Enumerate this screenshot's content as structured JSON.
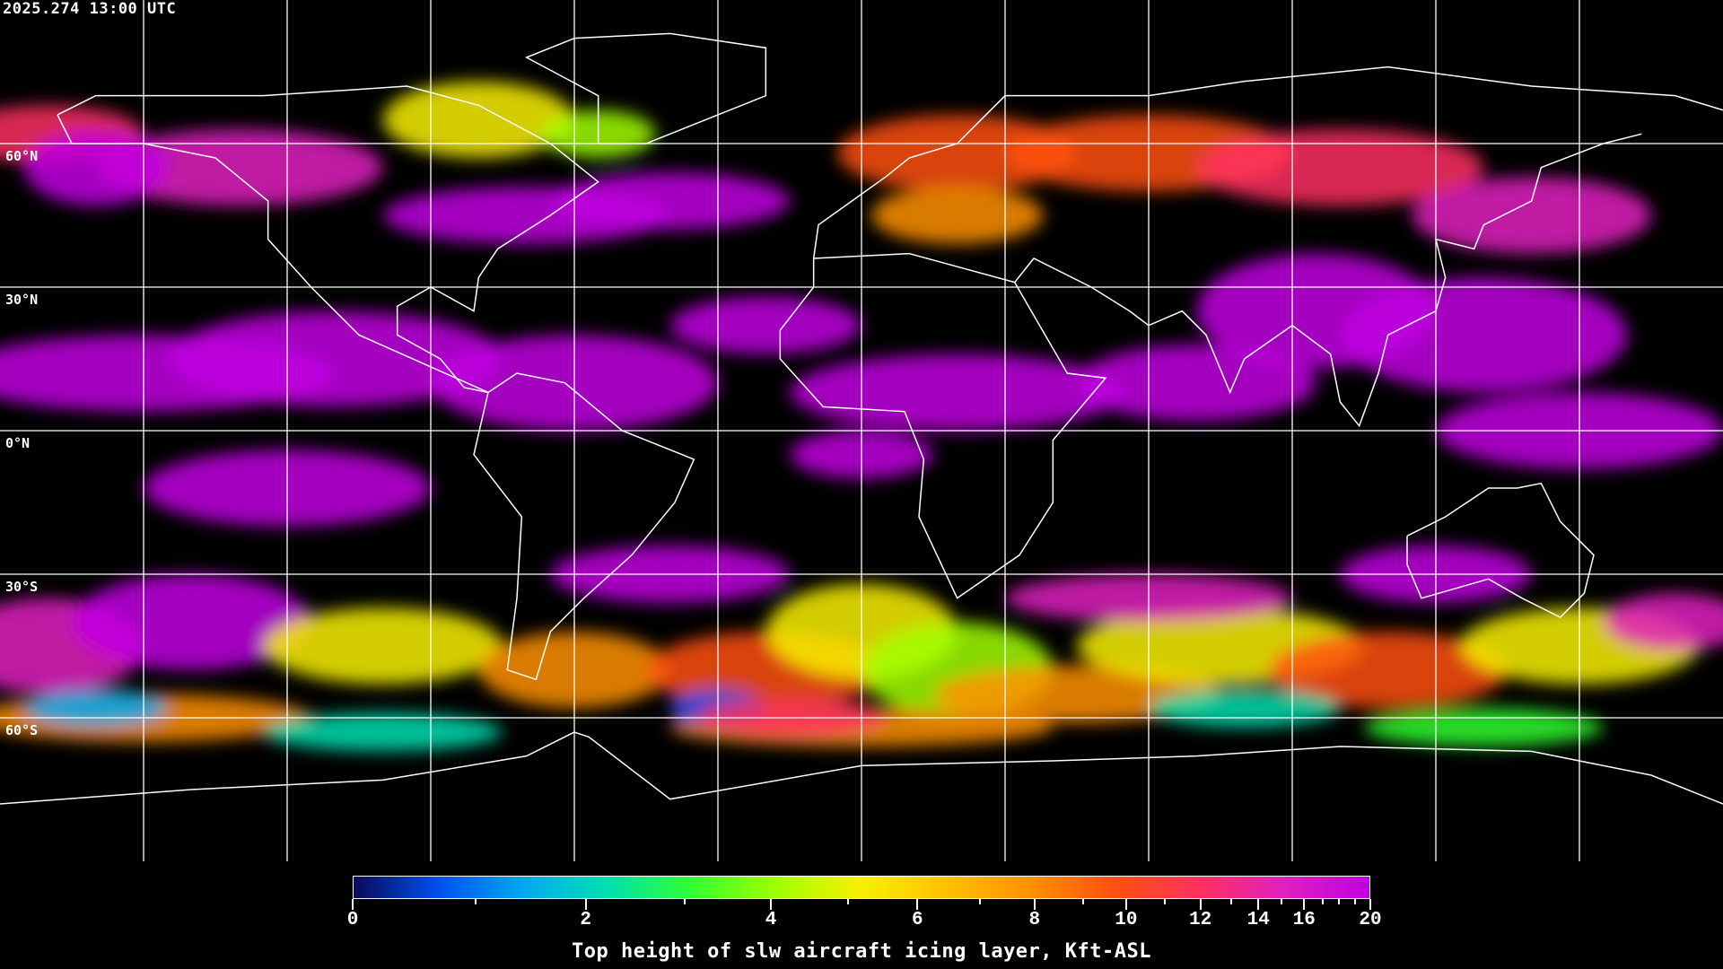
{
  "header": {
    "timestamp": "2025.274 13:00 UTC"
  },
  "map": {
    "projection": "equirectangular",
    "graticule_spacing_deg": 30,
    "gridline_color": "#ffffff",
    "coastline_color": "#ffffff",
    "background_color": "#000000",
    "lat_labels": [
      {
        "lat": 60,
        "label": "60°N"
      },
      {
        "lat": 30,
        "label": "30°N"
      },
      {
        "lat": 0,
        "label": "0°N"
      },
      {
        "lat": -30,
        "label": "30°S"
      },
      {
        "lat": -60,
        "label": "60°S"
      }
    ]
  },
  "colorbar": {
    "title": "Top height of slw aircraft icing layer, Kft-ASL",
    "range": [
      0,
      20
    ],
    "scale": "nonlinear",
    "colors": [
      "#0a0a5a",
      "#0050f0",
      "#00a8f0",
      "#00e0b0",
      "#30ff30",
      "#a0ff00",
      "#f8f000",
      "#ffc000",
      "#ff9000",
      "#ff5010",
      "#ff3060",
      "#e020c0",
      "#c000e0"
    ],
    "major_ticks": [
      {
        "value": 0,
        "label": "0",
        "pos": 0
      },
      {
        "value": 2,
        "label": "2",
        "pos": 0.229
      },
      {
        "value": 4,
        "label": "4",
        "pos": 0.411
      },
      {
        "value": 6,
        "label": "6",
        "pos": 0.555
      },
      {
        "value": 8,
        "label": "8",
        "pos": 0.67
      },
      {
        "value": 10,
        "label": "10",
        "pos": 0.76
      },
      {
        "value": 12,
        "label": "12",
        "pos": 0.833
      },
      {
        "value": 14,
        "label": "14",
        "pos": 0.89
      },
      {
        "value": 16,
        "label": "16",
        "pos": 0.935
      },
      {
        "value": 20,
        "label": "20",
        "pos": 1.0
      }
    ],
    "minor_ticks": [
      {
        "value": 1,
        "pos": 0.121
      },
      {
        "value": 3,
        "pos": 0.326
      },
      {
        "value": 5,
        "pos": 0.487
      },
      {
        "value": 7,
        "pos": 0.616
      },
      {
        "value": 9,
        "pos": 0.718
      },
      {
        "value": 11,
        "pos": 0.798
      },
      {
        "value": 13,
        "pos": 0.863
      },
      {
        "value": 15,
        "pos": 0.913
      },
      {
        "value": 17,
        "pos": 0.953
      },
      {
        "value": 18,
        "pos": 0.969
      },
      {
        "value": 19,
        "pos": 0.985
      }
    ]
  }
}
